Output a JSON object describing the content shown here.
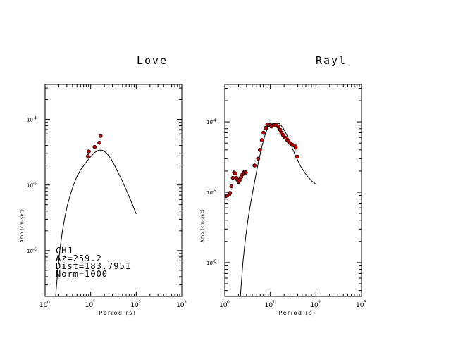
{
  "chart_data": [
    {
      "type": "scatter",
      "title": "Love",
      "xlabel": "Period (s)",
      "ylabel": "Amp (cm-sec)",
      "xscale": "log",
      "yscale": "log",
      "xlim": [
        1,
        1000
      ],
      "ylim": [
        2e-07,
        0.00034
      ],
      "x_tick_labels": [
        {
          "value": 1,
          "base": "10",
          "exp": "0"
        },
        {
          "value": 10,
          "base": "10",
          "exp": "1"
        },
        {
          "value": 100,
          "base": "10",
          "exp": "2"
        },
        {
          "value": 1000,
          "base": "10",
          "exp": "3"
        }
      ],
      "y_tick_labels": [
        {
          "value": 1e-06,
          "base": "10",
          "exp": "-6"
        },
        {
          "value": 1e-05,
          "base": "10",
          "exp": "-5"
        },
        {
          "value": 0.0001,
          "base": "10",
          "exp": "-4"
        }
      ],
      "series": [
        {
          "kind": "line",
          "x": [
            1.7,
            1.9,
            2.1,
            2.4,
            2.7,
            3.1,
            3.6,
            4.2,
            5.0,
            6.0,
            7.5,
            9.5,
            12.0,
            15.0,
            18.0,
            22.0,
            28.0,
            36.0,
            48.0,
            65.0,
            85.0,
            100.0
          ],
          "y": [
            2e-07,
            5e-07,
            1e-06,
            2e-06,
            3.2e-06,
            5e-06,
            7.2e-06,
            1e-05,
            1.35e-05,
            1.7e-05,
            2.1e-05,
            2.6e-05,
            3.1e-05,
            3.4e-05,
            3.4e-05,
            3.1e-05,
            2.5e-05,
            1.8e-05,
            1.2e-05,
            7.5e-06,
            4.8e-06,
            3.6e-06
          ]
        },
        {
          "kind": "points",
          "x": [
            8.7,
            9.1,
            12.2,
            15.5,
            16.5
          ],
          "y": [
            2.75e-05,
            3.25e-05,
            3.8e-05,
            4.4e-05,
            5.6e-05
          ]
        }
      ],
      "annotations": [
        "CHJ",
        "Az=259.2",
        "Dist=183.7951",
        "Norm=1000"
      ]
    },
    {
      "type": "scatter",
      "title": "Rayl",
      "xlabel": "Period (s)",
      "ylabel": "Amp (cm-sec)",
      "xscale": "log",
      "yscale": "log",
      "xlim": [
        1,
        1000
      ],
      "ylim": [
        3.3e-07,
        0.00034
      ],
      "x_tick_labels": [
        {
          "value": 1,
          "base": "10",
          "exp": "0"
        },
        {
          "value": 10,
          "base": "10",
          "exp": "1"
        },
        {
          "value": 100,
          "base": "10",
          "exp": "2"
        },
        {
          "value": 1000,
          "base": "10",
          "exp": "3"
        }
      ],
      "y_tick_labels": [
        {
          "value": 1e-06,
          "base": "10",
          "exp": "-6"
        },
        {
          "value": 1e-05,
          "base": "10",
          "exp": "-5"
        },
        {
          "value": 0.0001,
          "base": "10",
          "exp": "-4"
        }
      ],
      "series": [
        {
          "kind": "line",
          "x": [
            2.2,
            2.5,
            2.8,
            3.2,
            3.7,
            4.3,
            5.0,
            5.8,
            6.7,
            7.8,
            9.0,
            10.5,
            12.0,
            14.0,
            16.0,
            19.0,
            23.0,
            28.0,
            35.0,
            45.0,
            60.0,
            80.0,
            100.0
          ],
          "y": [
            3.3e-07,
            1e-06,
            2e-06,
            4e-06,
            7e-06,
            1.2e-05,
            2e-05,
            3.2e-05,
            4.8e-05,
            6.8e-05,
            8.5e-05,
            9.3e-05,
            9.5e-05,
            9.7e-05,
            9.4e-05,
            8.2e-05,
            6.5e-05,
            4.8e-05,
            3.4e-05,
            2.4e-05,
            1.8e-05,
            1.45e-05,
            1.3e-05
          ]
        },
        {
          "kind": "line",
          "x": [
            8.5,
            9.5,
            10.5,
            12.0,
            14.0,
            16.0,
            18.0,
            21.0,
            25.0,
            30.0,
            35.0
          ],
          "y": [
            8.5e-05,
            9.2e-05,
            9.3e-05,
            9.1e-05,
            8.6e-05,
            7.8e-05,
            6.8e-05,
            5.8e-05,
            5e-05,
            4.6e-05,
            4.3e-05
          ]
        },
        {
          "kind": "points",
          "x": [
            1.05,
            1.15,
            1.25,
            1.3,
            1.4,
            1.5,
            1.6,
            1.7,
            1.8,
            1.9,
            2.0,
            2.1,
            2.2,
            2.3,
            2.45,
            2.6,
            2.75,
            2.9,
            4.5,
            5.4,
            5.9,
            6.5,
            7.1,
            7.9,
            8.6,
            9.7,
            10.5,
            12.0,
            13.5,
            15.0,
            16.5,
            17.5,
            19.0,
            21.0,
            23.0,
            25.0,
            27.0,
            29.0,
            31.0,
            34.0,
            36.0,
            39.0
          ],
          "y": [
            8.8e-06,
            9e-06,
            9.3e-06,
            9.8e-06,
            1.22e-05,
            1.6e-05,
            1.9e-05,
            1.85e-05,
            1.6e-05,
            1.5e-05,
            1.4e-05,
            1.45e-05,
            1.55e-05,
            1.65e-05,
            1.8e-05,
            1.9e-05,
            1.95e-05,
            1.9e-05,
            2.4e-05,
            3e-05,
            4e-05,
            5.5e-05,
            7e-05,
            8.2e-05,
            9.2e-05,
            9e-05,
            8.6e-05,
            9e-05,
            9.1e-05,
            8.5e-05,
            7.7e-05,
            7e-05,
            6.5e-05,
            6e-05,
            5.6e-05,
            5.3e-05,
            5e-05,
            4.8e-05,
            4.7e-05,
            4.6e-05,
            4.3e-05,
            3.2e-05
          ]
        }
      ]
    }
  ],
  "colors": {
    "axes": "#000000",
    "marker_fill": "#cc0000",
    "marker_edge": "#000000",
    "background": "#ffffff"
  }
}
